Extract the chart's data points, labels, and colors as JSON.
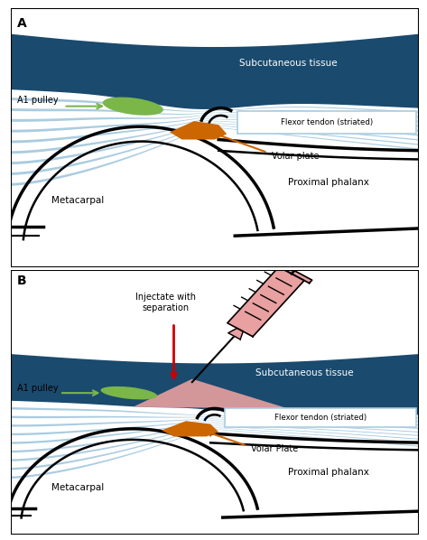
{
  "fig_bg": "#ffffff",
  "dark_blue": "#1a4a6e",
  "light_blue_stripe": "#aacce0",
  "green_pulley": "#7ab648",
  "orange_volar": "#cc6600",
  "pink_injection": "#e8a0a0",
  "red_arrow": "#cc0000",
  "label_A": "A",
  "label_B": "B",
  "text_subcutaneous": "Subcutaneous tissue",
  "text_flexor": "Flexor tendon (striated)",
  "text_a1": "A1 pulley",
  "text_volar_A": "Volar plate",
  "text_metacarpal": "Metacarpal",
  "text_proximal": "Proximal phalanx",
  "text_injectate": "Injectate with\nseparation",
  "text_volar_B": "Volar Plate",
  "text_metacarpal_B": "Metacarpal",
  "text_proximal_B": "Proximal phalanx",
  "text_subcutaneous_B": "Subcutaneous tissue",
  "text_flexor_B": "Flexor tendon (striated)"
}
